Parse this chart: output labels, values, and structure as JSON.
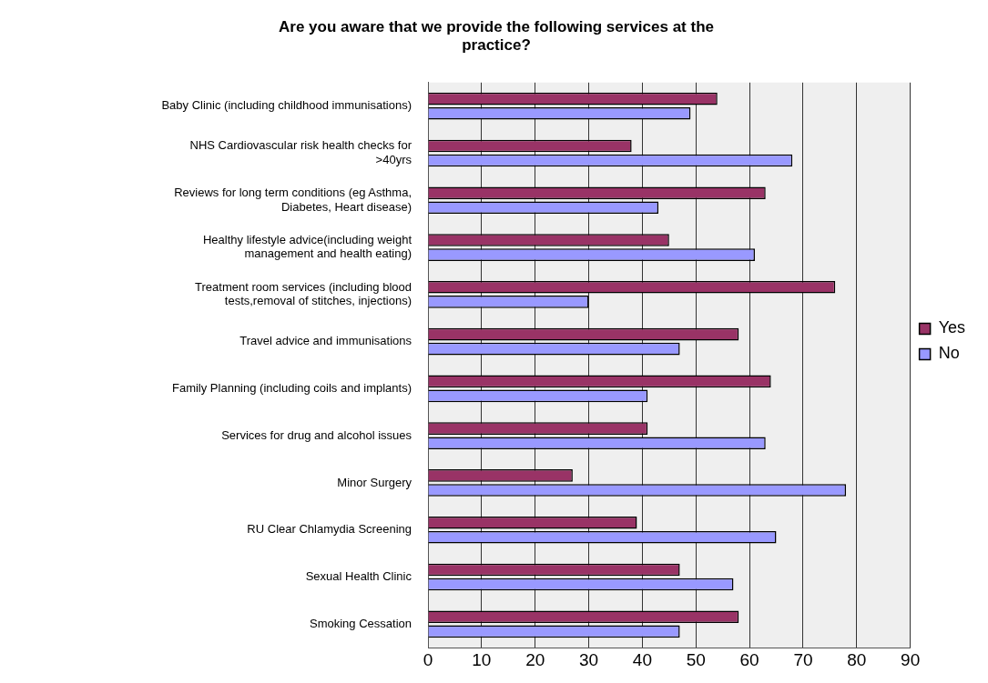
{
  "chart_data": {
    "type": "bar",
    "orientation": "horizontal",
    "title": "Are you aware that we provide the following services at the practice?",
    "categories": [
      "Baby Clinic (including childhood immunisations)",
      "NHS Cardiovascular risk health checks for >40yrs",
      "Reviews for long term conditions (eg Asthma, Diabetes, Heart disease)",
      "Healthy lifestyle advice(including weight management and health eating)",
      "Treatment room services (including blood tests,removal of stitches, injections)",
      "Travel advice and immunisations",
      "Family Planning (including coils and implants)",
      "Services for drug and alcohol issues",
      "Minor Surgery",
      "RU Clear Chlamydia Screening",
      "Sexual Health Clinic",
      "Smoking Cessation"
    ],
    "series": [
      {
        "name": "Yes",
        "color": "#993366",
        "values": [
          54,
          38,
          63,
          45,
          76,
          58,
          64,
          41,
          27,
          39,
          47,
          58
        ]
      },
      {
        "name": "No",
        "color": "#9999ff",
        "values": [
          49,
          68,
          43,
          61,
          30,
          47,
          41,
          63,
          78,
          65,
          57,
          47
        ]
      }
    ],
    "xlim": [
      0,
      90
    ],
    "xticks": [
      0,
      10,
      20,
      30,
      40,
      50,
      60,
      70,
      80,
      90
    ],
    "grid": "x",
    "legend": "right"
  }
}
